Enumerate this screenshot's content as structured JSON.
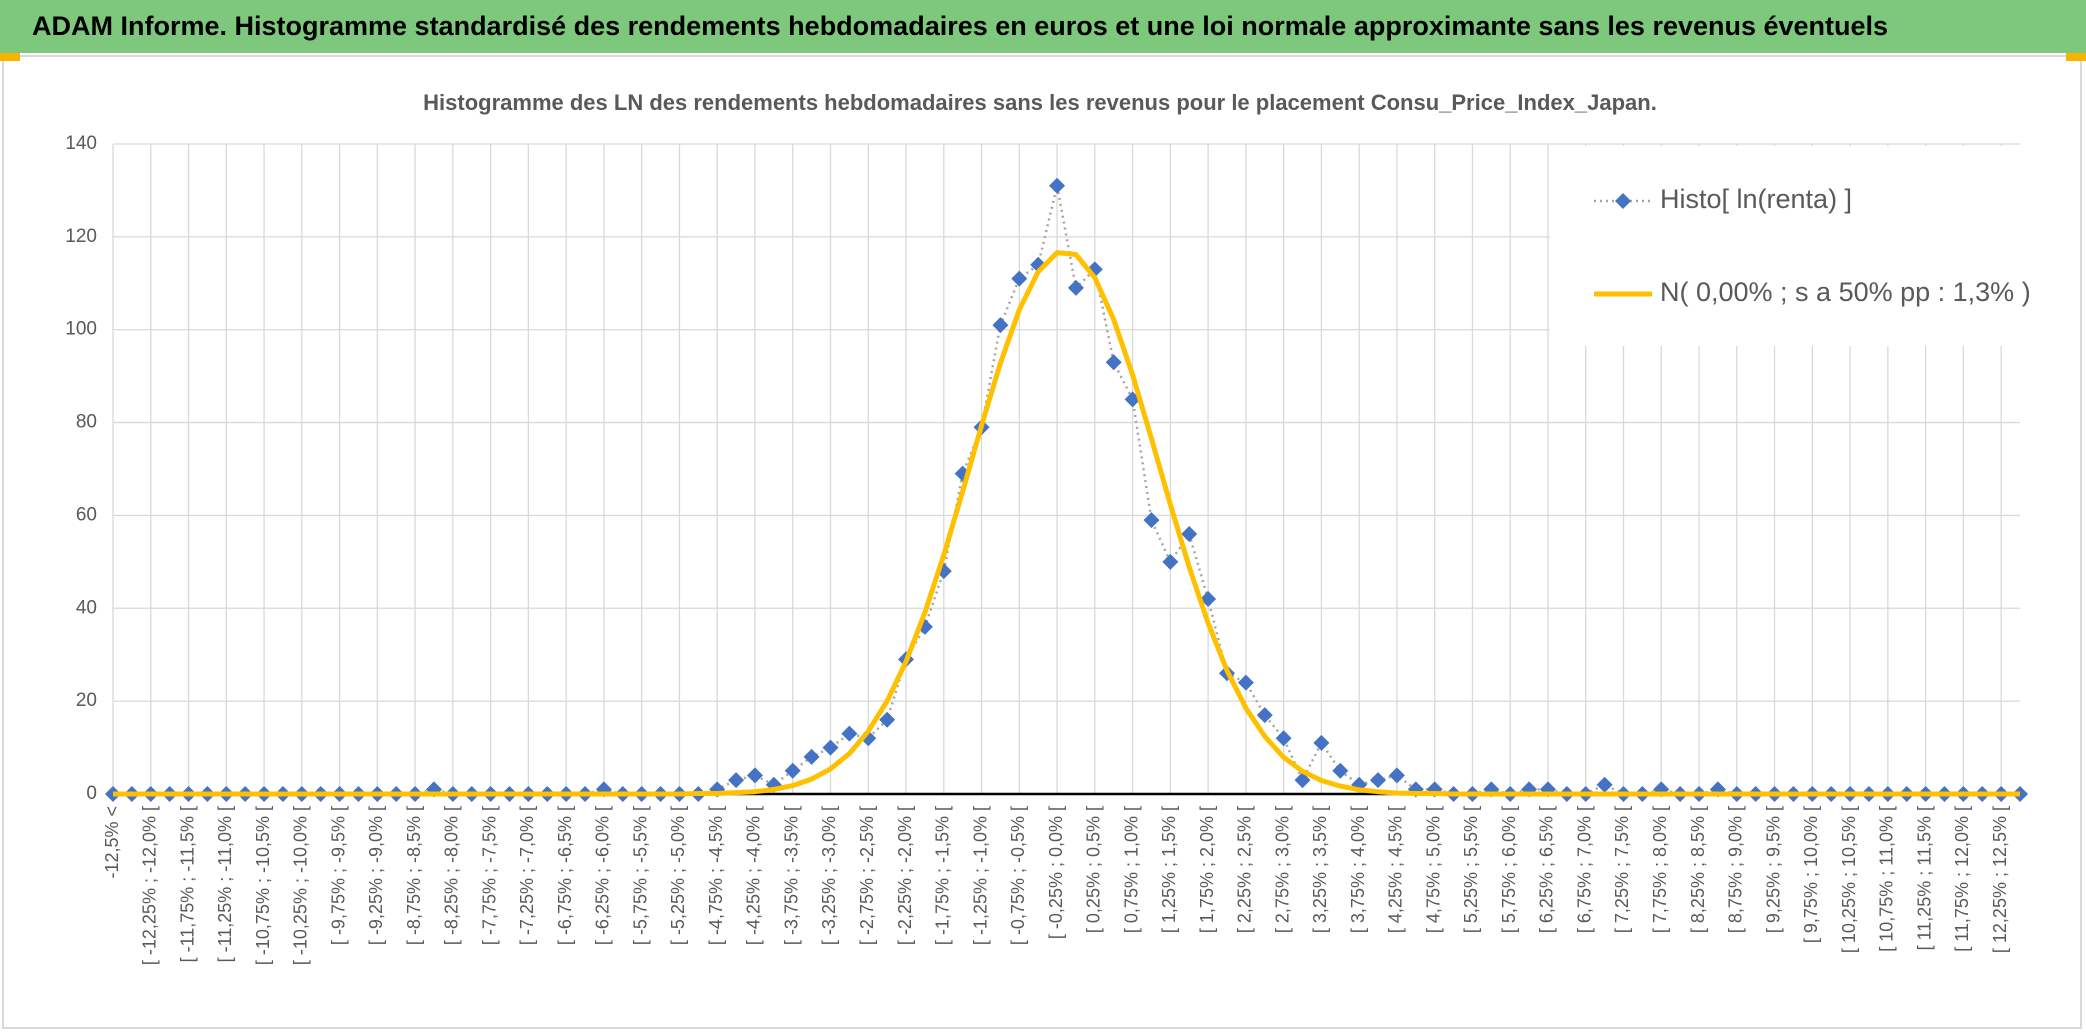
{
  "header": {
    "title": "ADAM Informe. Histogramme standardisé des rendements hebdomadaires en euros et une loi normale approximante sans les revenus éventuels"
  },
  "chart_data": {
    "type": "line",
    "title": "Histogramme des LN des rendements hebdomadaires sans les revenus pour le placement Consu_Price_Index_Japan.",
    "categories": [
      "-12,5% <",
      null,
      "[ -12,25% ; -12,0% [",
      null,
      "[ -11,75% ; -11,5% [",
      null,
      "[ -11,25% ; -11,0% [",
      null,
      "[ -10,75% ; -10,5% [",
      null,
      "[ -10,25% ; -10,0% [",
      null,
      "[ -9,75% ; -9,5% [",
      null,
      "[ -9,25% ; -9,0% [",
      null,
      "[ -8,75% ; -8,5% [",
      null,
      "[ -8,25% ; -8,0% [",
      null,
      "[ -7,75% ; -7,5% [",
      null,
      "[ -7,25% ; -7,0% [",
      null,
      "[ -6,75% ; -6,5% [",
      null,
      "[ -6,25% ; -6,0% [",
      null,
      "[ -5,75% ; -5,5% [",
      null,
      "[ -5,25% ; -5,0% [",
      null,
      "[ -4,75% ; -4,5% [",
      null,
      "[ -4,25% ; -4,0% [",
      null,
      "[ -3,75% ; -3,5% [",
      null,
      "[ -3,25% ; -3,0% [",
      null,
      "[ -2,75% ; -2,5% [",
      null,
      "[ -2,25% ; -2,0% [",
      null,
      "[ -1,75% ; -1,5% [",
      null,
      "[ -1,25% ; -1,0% [",
      null,
      "[ -0,75% ; -0,5% [",
      null,
      "[ -0,25% ; 0,0% [",
      null,
      "[ 0,25% ; 0,5% [",
      null,
      "[ 0,75% ; 1,0% [",
      null,
      "[ 1,25% ; 1,5% [",
      null,
      "[ 1,75% ; 2,0% [",
      null,
      "[ 2,25% ; 2,5% [",
      null,
      "[ 2,75% ; 3,0% [",
      null,
      "[ 3,25% ; 3,5% [",
      null,
      "[ 3,75% ; 4,0% [",
      null,
      "[ 4,25% ; 4,5% [",
      null,
      "[ 4,75% ; 5,0% [",
      null,
      "[ 5,25% ; 5,5% [",
      null,
      "[ 5,75% ; 6,0% [",
      null,
      "[ 6,25% ; 6,5% [",
      null,
      "[ 6,75% ; 7,0% [",
      null,
      "[ 7,25% ; 7,5% [",
      null,
      "[ 7,75% ; 8,0% [",
      null,
      "[ 8,25% ; 8,5% [",
      null,
      "[ 8,75% ; 9,0% [",
      null,
      "[ 9,25% ; 9,5% [",
      null,
      "[ 9,75% ; 10,0% [",
      null,
      "[ 10,25% ; 10,5% [",
      null,
      "[ 10,75% ; 11,0% [",
      null,
      "[ 11,25% ; 11,5% [",
      null,
      "[ 11,75% ; 12,0% [",
      null,
      "[ 12,25% ; 12,5% [",
      null
    ],
    "series": [
      {
        "name": "Histo[ ln(renta) ]",
        "color": "#4472C4",
        "line_color": "#A5A5A5",
        "marker": "diamond",
        "values": [
          0,
          0,
          0,
          0,
          0,
          0,
          0,
          0,
          0,
          0,
          0,
          0,
          0,
          0,
          0,
          0,
          0,
          1,
          0,
          0,
          0,
          0,
          0,
          0,
          0,
          0,
          1,
          0,
          0,
          0,
          0,
          0,
          1,
          3,
          4,
          2,
          5,
          8,
          10,
          13,
          12,
          16,
          29,
          36,
          48,
          69,
          79,
          101,
          111,
          114,
          131,
          109,
          113,
          93,
          85,
          59,
          50,
          56,
          42,
          26,
          24,
          17,
          12,
          3,
          11,
          5,
          2,
          3,
          4,
          1,
          1,
          0,
          0,
          1,
          0,
          1,
          1,
          0,
          0,
          2,
          0,
          0,
          1,
          0,
          0,
          1,
          0,
          0,
          0,
          0,
          0,
          0,
          0,
          0,
          0,
          0,
          0,
          0,
          0,
          0,
          0,
          0
        ]
      },
      {
        "name": "N( 0,00% ; s a 50% pp : 1,3% )",
        "color": "#FFC000",
        "marker": "none",
        "values": [
          0,
          0,
          0,
          0,
          0,
          0,
          0,
          0,
          0,
          0,
          0,
          0,
          0,
          0,
          0,
          0,
          0,
          0,
          0,
          0,
          0,
          0,
          0,
          0,
          0,
          0,
          0,
          0,
          0,
          0,
          0,
          0.1,
          0.1,
          0.3,
          0.5,
          1,
          1.8,
          3.2,
          5.4,
          8.7,
          13.5,
          20,
          28.5,
          39.1,
          51.5,
          65.2,
          79.3,
          92.8,
          104.3,
          112.5,
          116.6,
          116.2,
          111.2,
          102.2,
          90.3,
          76.5,
          62.4,
          48.9,
          36.8,
          26.6,
          18.5,
          12.4,
          7.9,
          4.9,
          2.9,
          1.7,
          0.9,
          0.5,
          0.2,
          0.1,
          0.1,
          0,
          0,
          0,
          0,
          0,
          0,
          0,
          0,
          0,
          0,
          0,
          0,
          0,
          0,
          0,
          0,
          0,
          0,
          0,
          0,
          0,
          0,
          0,
          0,
          0,
          0,
          0,
          0,
          0,
          0,
          0
        ]
      }
    ],
    "ylim": [
      0,
      140
    ],
    "yticks": [
      0,
      20,
      40,
      60,
      80,
      100,
      120,
      140
    ],
    "grid": true,
    "legend": "top-right"
  }
}
